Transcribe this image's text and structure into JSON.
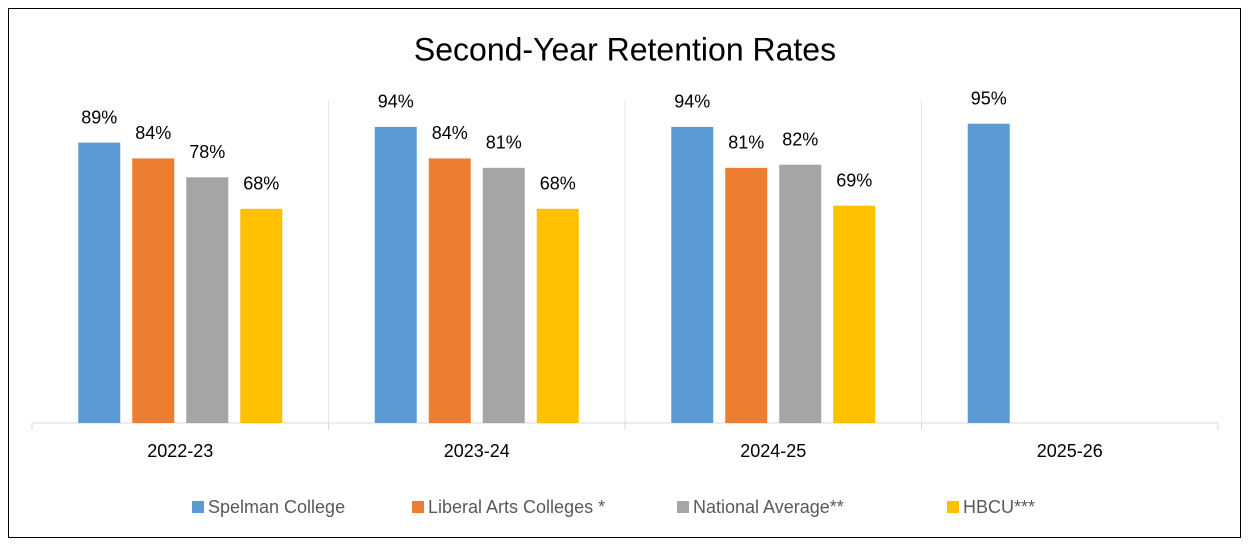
{
  "chart_data": {
    "type": "bar",
    "title": "Second-Year Retention Rates",
    "categories": [
      "2022-23",
      "2023-24",
      "2024-25",
      "2025-26"
    ],
    "series": [
      {
        "name": "Spelman College",
        "color": "#5b9bd5",
        "values": [
          89,
          94,
          94,
          95
        ],
        "value_labels": [
          "89%",
          "94%",
          "94%",
          "95%"
        ]
      },
      {
        "name": "Liberal Arts Colleges *",
        "color": "#ed7d31",
        "values": [
          84,
          84,
          81,
          null
        ],
        "value_labels": [
          "84%",
          "84%",
          "81%",
          null
        ]
      },
      {
        "name": "National Average**",
        "color": "#a5a5a5",
        "values": [
          78,
          81,
          82,
          null
        ],
        "value_labels": [
          "78%",
          "81%",
          "82%",
          null
        ]
      },
      {
        "name": "HBCU***",
        "color": "#ffc000",
        "values": [
          68,
          68,
          69,
          null
        ],
        "value_labels": [
          "68%",
          "68%",
          "69%",
          null
        ]
      }
    ],
    "ylim": [
      0,
      100
    ],
    "legend": "bottom"
  }
}
